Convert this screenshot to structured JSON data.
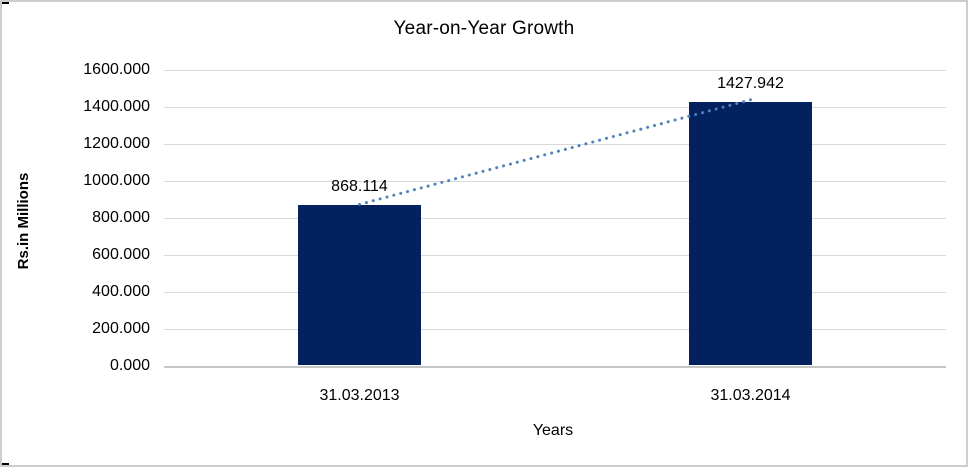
{
  "chart_data": {
    "type": "bar",
    "title": "Year-on-Year Growth",
    "xlabel": "Years",
    "ylabel": "Rs.in Millions",
    "categories": [
      "31.03.2013",
      "31.03.2014"
    ],
    "values": [
      868.114,
      1427.942
    ],
    "value_labels": [
      "868.114",
      "1427.942"
    ],
    "ylim": [
      0,
      1600
    ],
    "ytick_step": 200,
    "ytick_labels": [
      "0.000",
      "200.000",
      "400.000",
      "600.000",
      "800.000",
      "1000.000",
      "1200.000",
      "1400.000",
      "1600.000"
    ],
    "grid": true,
    "legend": "none",
    "colors": {
      "bar": "#03215e",
      "gridline": "#d9d9d9",
      "axis_line": "#c6c6c6",
      "trendline": "#4f81bd",
      "text": "#000000"
    },
    "trendline": {
      "style": "dotted",
      "from_category": "31.03.2013",
      "to_category": "31.03.2014"
    }
  }
}
